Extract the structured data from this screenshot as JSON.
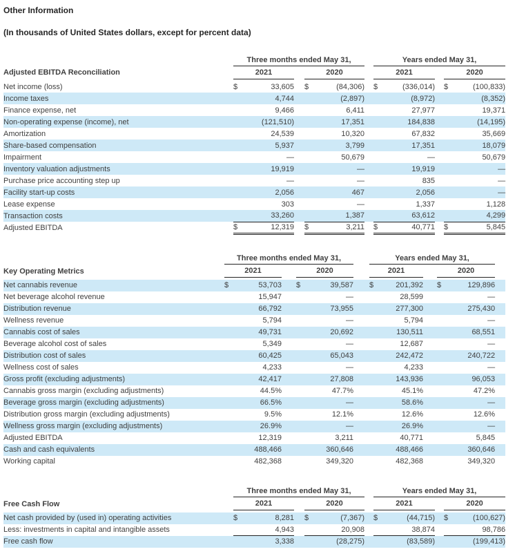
{
  "page": {
    "title": "Other Information",
    "subtitle": "(In thousands of United States dollars, except for percent data)"
  },
  "colors": {
    "row_highlight": "#cee9f7",
    "text": "#3f3f3f",
    "heading_text": "#262626",
    "rule": "#222222"
  },
  "tables": [
    {
      "name": "adjusted-ebitda-reconciliation",
      "title": "Adjusted EBITDA Reconciliation",
      "group_headers": [
        "Three months ended May 31,",
        "Years ended May 31,"
      ],
      "year_headers": [
        "2021",
        "2020",
        "2021",
        "2020"
      ],
      "rows": [
        {
          "label": "Net income (loss)",
          "dollars": true,
          "values": [
            "33,605",
            "(84,306)",
            "(336,014)",
            "(100,833)"
          ],
          "shaded": false
        },
        {
          "label": "Income taxes",
          "dollars": false,
          "values": [
            "4,744",
            "(2,897)",
            "(8,972)",
            "(8,352)"
          ],
          "shaded": true
        },
        {
          "label": "Finance expense, net",
          "dollars": false,
          "values": [
            "9,466",
            "6,411",
            "27,977",
            "19,371"
          ],
          "shaded": false
        },
        {
          "label": "Non-operating expense (income), net",
          "dollars": false,
          "values": [
            "(121,510)",
            "17,351",
            "184,838",
            "(14,195)"
          ],
          "shaded": true
        },
        {
          "label": "Amortization",
          "dollars": false,
          "values": [
            "24,539",
            "10,320",
            "67,832",
            "35,669"
          ],
          "shaded": false
        },
        {
          "label": "Share-based compensation",
          "dollars": false,
          "values": [
            "5,937",
            "3,799",
            "17,351",
            "18,079"
          ],
          "shaded": true
        },
        {
          "label": "Impairment",
          "dollars": false,
          "values": [
            "—",
            "50,679",
            "—",
            "50,679"
          ],
          "shaded": false
        },
        {
          "label": "Inventory valuation adjustments",
          "dollars": false,
          "values": [
            "19,919",
            "—",
            "19,919",
            "—"
          ],
          "shaded": true
        },
        {
          "label": "Purchase price accounting step up",
          "dollars": false,
          "values": [
            "—",
            "—",
            "835",
            "—"
          ],
          "shaded": false
        },
        {
          "label": "Facility start-up costs",
          "dollars": false,
          "values": [
            "2,056",
            "467",
            "2,056",
            "—"
          ],
          "shaded": true
        },
        {
          "label": "Lease expense",
          "dollars": false,
          "values": [
            "303",
            "—",
            "1,337",
            "1,128"
          ],
          "shaded": false
        },
        {
          "label": "Transaction costs",
          "dollars": false,
          "values": [
            "33,260",
            "1,387",
            "63,612",
            "4,299"
          ],
          "shaded": true
        },
        {
          "label": "Adjusted EBITDA",
          "dollars": true,
          "values": [
            "12,319",
            "3,211",
            "40,771",
            "5,845"
          ],
          "shaded": false,
          "style": "total"
        }
      ]
    },
    {
      "name": "key-operating-metrics",
      "title": "Key Operating Metrics",
      "group_headers": [
        "Three months ended May 31,",
        "Years ended May 31,"
      ],
      "year_headers": [
        "2021",
        "2020",
        "2021",
        "2020"
      ],
      "rows": [
        {
          "label": "Net cannabis revenue",
          "dollars": true,
          "values": [
            "53,703",
            "39,587",
            "201,392",
            "129,896"
          ],
          "shaded": true
        },
        {
          "label": "Net beverage alcohol revenue",
          "dollars": false,
          "values": [
            "15,947",
            "—",
            "28,599",
            "—"
          ],
          "shaded": false
        },
        {
          "label": "Distribution revenue",
          "dollars": false,
          "values": [
            "66,792",
            "73,955",
            "277,300",
            "275,430"
          ],
          "shaded": true
        },
        {
          "label": "Wellness revenue",
          "dollars": false,
          "values": [
            "5,794",
            "—",
            "5,794",
            "—"
          ],
          "shaded": false
        },
        {
          "label": "Cannabis cost of sales",
          "dollars": false,
          "values": [
            "49,731",
            "20,692",
            "130,511",
            "68,551"
          ],
          "shaded": true
        },
        {
          "label": "Beverage alcohol cost of sales",
          "dollars": false,
          "values": [
            "5,349",
            "—",
            "12,687",
            "—"
          ],
          "shaded": false
        },
        {
          "label": "Distribution cost of sales",
          "dollars": false,
          "values": [
            "60,425",
            "65,043",
            "242,472",
            "240,722"
          ],
          "shaded": true
        },
        {
          "label": "Wellness cost of sales",
          "dollars": false,
          "values": [
            "4,233",
            "—",
            "4,233",
            "—"
          ],
          "shaded": false
        },
        {
          "label": "Gross profit (excluding adjustments)",
          "dollars": false,
          "values": [
            "42,417",
            "27,808",
            "143,936",
            "96,053"
          ],
          "shaded": true
        },
        {
          "label": "Cannabis gross margin (excluding adjustments)",
          "dollars": false,
          "values": [
            "44.5%",
            "47.7%",
            "45.1%",
            "47.2%"
          ],
          "shaded": false
        },
        {
          "label": "Beverage gross margin (excluding adjustments)",
          "dollars": false,
          "values": [
            "66.5%",
            "—",
            "58.6%",
            "—"
          ],
          "shaded": true
        },
        {
          "label": "Distribution gross margin (excluding adjustments)",
          "dollars": false,
          "values": [
            "9.5%",
            "12.1%",
            "12.6%",
            "12.6%"
          ],
          "shaded": false
        },
        {
          "label": "Wellness gross margin (excluding adjustments)",
          "dollars": false,
          "values": [
            "26.9%",
            "—",
            "26.9%",
            "—"
          ],
          "shaded": true
        },
        {
          "label": "Adjusted EBITDA",
          "dollars": false,
          "values": [
            "12,319",
            "3,211",
            "40,771",
            "5,845"
          ],
          "shaded": false
        },
        {
          "label": "Cash and cash equivalents",
          "dollars": false,
          "values": [
            "488,466",
            "360,646",
            "488,466",
            "360,646"
          ],
          "shaded": true
        },
        {
          "label": "Working capital",
          "dollars": false,
          "values": [
            "482,368",
            "349,320",
            "482,368",
            "349,320"
          ],
          "shaded": false
        }
      ]
    },
    {
      "name": "free-cash-flow",
      "title": "Free Cash Flow",
      "group_headers": [
        "Three months ended May 31,",
        "Years ended May 31,"
      ],
      "year_headers": [
        "2021",
        "2020",
        "2021",
        "2020"
      ],
      "rows": [
        {
          "label": "Net cash provided by (used in) operating activities",
          "dollars": true,
          "values": [
            "8,281",
            "(7,367)",
            "(44,715)",
            "(100,627)"
          ],
          "shaded": true
        },
        {
          "label": "Less: investments in capital and intangible assets",
          "dollars": false,
          "values": [
            "4,943",
            "20,908",
            "38,874",
            "98,786"
          ],
          "shaded": false,
          "style": "underline"
        },
        {
          "label": "Free cash flow",
          "dollars": false,
          "values": [
            "3,338",
            "(28,275)",
            "(83,589)",
            "(199,413)"
          ],
          "shaded": true
        }
      ]
    }
  ]
}
